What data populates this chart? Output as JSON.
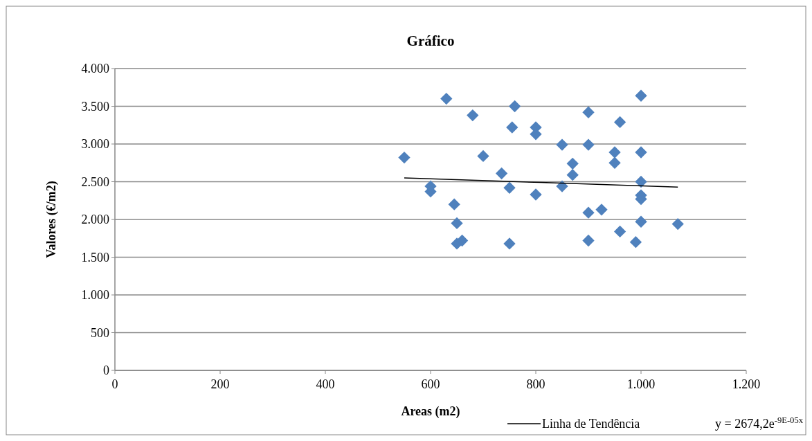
{
  "chart_data": {
    "type": "scatter",
    "title": "Gráfico",
    "xlabel": "Areas (m2)",
    "ylabel": "Valores  (€/m2)",
    "xlim": [
      0,
      1200
    ],
    "xticks": [
      0,
      200,
      400,
      600,
      800,
      {
        "value": 1000,
        "label": "1.000"
      },
      {
        "value": 1200,
        "label": "1.200"
      }
    ],
    "ylim": [
      0,
      4000
    ],
    "yticks": [
      0,
      500,
      {
        "value": 1000,
        "label": "1.000"
      },
      {
        "value": 1500,
        "label": "1.500"
      },
      {
        "value": 2000,
        "label": "2.000"
      },
      {
        "value": 2500,
        "label": "2.500"
      },
      {
        "value": 3000,
        "label": "3.000"
      },
      {
        "value": 3500,
        "label": "3.500"
      },
      {
        "value": 4000,
        "label": "4.000"
      }
    ],
    "grid": "y",
    "legend": "bottom right",
    "series": [
      {
        "color": "#4f81bd",
        "marker": "diamond",
        "x": [
          550,
          600,
          600,
          630,
          680,
          645,
          650,
          650,
          660,
          700,
          735,
          750,
          750,
          760,
          755,
          800,
          800,
          800,
          850,
          850,
          870,
          870,
          900,
          900,
          900,
          900,
          925,
          960,
          950,
          950,
          960,
          990,
          1000,
          1000,
          1000,
          1000,
          1000,
          1000,
          1070
        ],
        "values": [
          2820,
          2440,
          2370,
          3600,
          3380,
          2200,
          1950,
          1680,
          1720,
          2840,
          2610,
          2420,
          1680,
          3500,
          3220,
          3220,
          3130,
          2330,
          2990,
          2440,
          2740,
          2590,
          3420,
          2990,
          2090,
          1720,
          2130,
          3290,
          2890,
          2750,
          1840,
          1700,
          3640,
          2890,
          2500,
          2320,
          2270,
          1970,
          1940
        ]
      },
      {
        "type": "line",
        "name": "Linha de Tendência",
        "color": "#000000",
        "line_style": "solid",
        "marker": "none",
        "x": [
          550,
          810,
          1070
        ],
        "values": [
          2550,
          2490,
          2430
        ]
      }
    ],
    "annotations": [
      "y = 2674,2e$^{-9E-05x}$"
    ]
  }
}
